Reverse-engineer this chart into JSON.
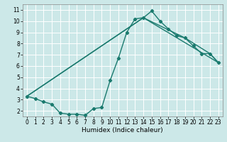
{
  "title": "",
  "xlabel": "Humidex (Indice chaleur)",
  "bg_color": "#cce8e8",
  "grid_color": "#ffffff",
  "line_color": "#1a7a6e",
  "marker": "D",
  "markersize": 2.2,
  "linewidth": 1.0,
  "xlim": [
    -0.5,
    23.5
  ],
  "ylim": [
    1.5,
    11.5
  ],
  "xticks": [
    0,
    1,
    2,
    3,
    4,
    5,
    6,
    7,
    8,
    9,
    10,
    11,
    12,
    13,
    14,
    15,
    16,
    17,
    18,
    19,
    20,
    21,
    22,
    23
  ],
  "yticks": [
    2,
    3,
    4,
    5,
    6,
    7,
    8,
    9,
    10,
    11
  ],
  "series1_x": [
    0,
    1,
    2,
    3,
    4,
    5,
    6,
    7,
    8,
    9,
    10,
    11,
    12,
    13,
    14,
    15,
    16,
    17,
    18,
    19,
    20,
    21,
    22,
    23
  ],
  "series1_y": [
    3.3,
    3.1,
    2.8,
    2.6,
    1.8,
    1.7,
    1.7,
    1.6,
    2.2,
    2.3,
    4.7,
    6.7,
    9.0,
    10.2,
    10.3,
    10.9,
    10.0,
    9.3,
    8.7,
    8.5,
    7.8,
    7.1,
    7.1,
    6.3
  ],
  "series2_x": [
    0,
    14,
    19,
    22,
    23
  ],
  "series2_y": [
    3.3,
    10.3,
    8.5,
    7.1,
    6.3
  ],
  "series3_x": [
    0,
    14,
    23
  ],
  "series3_y": [
    3.3,
    10.3,
    6.3
  ],
  "xlabel_fontsize": 6.5,
  "tick_fontsize": 5.5
}
